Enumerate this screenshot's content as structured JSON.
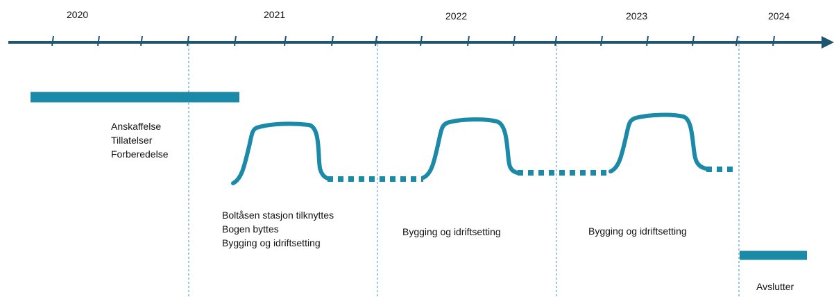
{
  "timeline": {
    "years": [
      "2020",
      "2021",
      "2022",
      "2023",
      "2024"
    ]
  },
  "phases": {
    "prep": [
      "Anskaffelse",
      "Tillatelser",
      "Forberedelse"
    ],
    "phase1": [
      "Boltåsen stasjon tilknyttes",
      "Bogen byttes",
      "Bygging og idriftsetting"
    ],
    "phase2": [
      "Bygging og idriftsetting"
    ],
    "phase3": [
      "Bygging og idriftsetting"
    ],
    "finish": [
      "Avslutter"
    ]
  },
  "colors": {
    "axis": "#1e5570",
    "accent": "#1b8aa8",
    "divider": "#3d8fd6"
  }
}
